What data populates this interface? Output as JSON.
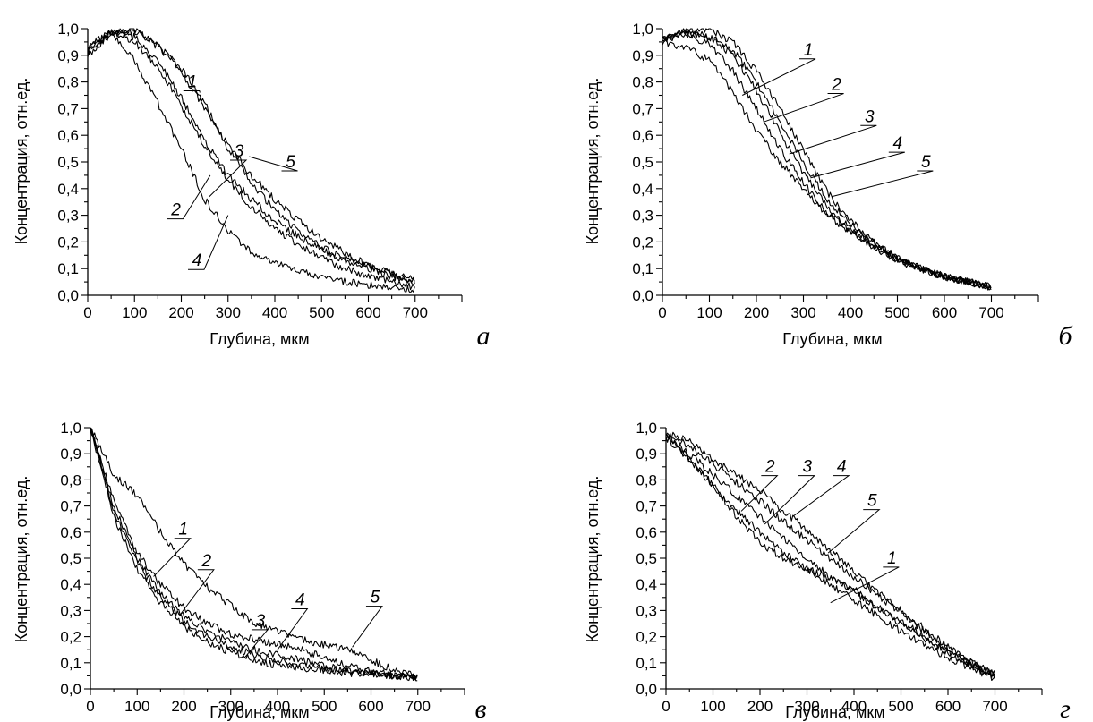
{
  "chart_data": [
    {
      "type": "line",
      "panel_letter": "а",
      "xlabel": "Глубина, мкм",
      "ylabel": "Концентрация, отн.ед.",
      "xlim": [
        0,
        800
      ],
      "ylim": [
        0,
        1.0
      ],
      "x_ticks": [
        "0",
        "100",
        "200",
        "300",
        "400",
        "500",
        "600",
        "700"
      ],
      "y_ticks": [
        "0,0",
        "0,1",
        "0,2",
        "0,3",
        "0,4",
        "0,5",
        "0,6",
        "0,7",
        "0,8",
        "0,9",
        "1,0"
      ],
      "grid": false,
      "series": [
        {
          "name": "1",
          "x": [
            0,
            50,
            100,
            150,
            200,
            250,
            300,
            350,
            400,
            450,
            500,
            550,
            600,
            650,
            700
          ],
          "y": [
            0.92,
            0.99,
            1.0,
            0.93,
            0.85,
            0.72,
            0.55,
            0.42,
            0.32,
            0.24,
            0.18,
            0.14,
            0.11,
            0.08,
            0.05
          ],
          "label_anchor": [
            240,
            0.76
          ]
        },
        {
          "name": "2",
          "x": [
            0,
            50,
            100,
            150,
            200,
            250,
            300,
            350,
            400,
            450,
            500,
            550,
            600,
            650,
            700
          ],
          "y": [
            0.93,
            0.99,
            0.95,
            0.86,
            0.71,
            0.56,
            0.43,
            0.33,
            0.25,
            0.19,
            0.14,
            0.1,
            0.07,
            0.05,
            0.03
          ],
          "label_anchor": [
            262,
            0.45
          ]
        },
        {
          "name": "3",
          "x": [
            0,
            50,
            100,
            150,
            200,
            250,
            300,
            350,
            400,
            450,
            500,
            550,
            600,
            650,
            700
          ],
          "y": [
            0.93,
            0.98,
            0.97,
            0.88,
            0.74,
            0.58,
            0.45,
            0.36,
            0.28,
            0.22,
            0.17,
            0.13,
            0.1,
            0.07,
            0.04
          ],
          "label_anchor": [
            260,
            0.37
          ]
        },
        {
          "name": "4",
          "x": [
            0,
            50,
            100,
            150,
            200,
            250,
            300,
            350,
            400,
            450,
            500,
            550,
            600,
            650,
            700
          ],
          "y": [
            0.9,
            0.98,
            0.88,
            0.72,
            0.55,
            0.36,
            0.24,
            0.16,
            0.12,
            0.09,
            0.07,
            0.05,
            0.04,
            0.03,
            0.02
          ],
          "label_anchor": [
            300,
            0.3
          ]
        },
        {
          "name": "5",
          "x": [
            0,
            50,
            100,
            150,
            200,
            250,
            300,
            350,
            400,
            450,
            500,
            550,
            600,
            650,
            700
          ],
          "y": [
            0.91,
            0.99,
            0.99,
            0.94,
            0.84,
            0.7,
            0.56,
            0.45,
            0.36,
            0.28,
            0.21,
            0.16,
            0.11,
            0.08,
            0.06
          ],
          "label_anchor": [
            345,
            0.52
          ]
        }
      ],
      "curve_labels": [
        {
          "text": "1",
          "at": [
            235,
            0.78
          ]
        },
        {
          "text": "3",
          "at": [
            335,
            0.52
          ]
        },
        {
          "text": "5",
          "at": [
            445,
            0.48
          ]
        },
        {
          "text": "2",
          "at": [
            200,
            0.3
          ]
        },
        {
          "text": "4",
          "at": [
            245,
            0.11
          ]
        }
      ]
    },
    {
      "type": "line",
      "panel_letter": "б",
      "xlabel": "Глубина, мкм",
      "ylabel": "Концентрация, отн.ед.",
      "xlim": [
        0,
        800
      ],
      "ylim": [
        0,
        1.0
      ],
      "x_ticks": [
        "0",
        "100",
        "200",
        "300",
        "400",
        "500",
        "600",
        "700"
      ],
      "y_ticks": [
        "0,0",
        "0,1",
        "0,2",
        "0,3",
        "0,4",
        "0,5",
        "0,6",
        "0,7",
        "0,8",
        "0,9",
        "1,0"
      ],
      "grid": false,
      "series": [
        {
          "name": "1",
          "x": [
            0,
            50,
            100,
            150,
            200,
            250,
            300,
            350,
            400,
            450,
            500,
            550,
            600,
            650,
            700
          ],
          "y": [
            0.95,
            0.93,
            0.88,
            0.76,
            0.62,
            0.5,
            0.4,
            0.3,
            0.24,
            0.18,
            0.13,
            0.1,
            0.07,
            0.05,
            0.03
          ],
          "label_anchor": [
            170,
            0.75
          ]
        },
        {
          "name": "2",
          "x": [
            0,
            50,
            100,
            150,
            200,
            250,
            300,
            350,
            400,
            450,
            500,
            550,
            600,
            650,
            700
          ],
          "y": [
            0.96,
            0.98,
            0.94,
            0.84,
            0.7,
            0.55,
            0.42,
            0.31,
            0.24,
            0.18,
            0.13,
            0.1,
            0.07,
            0.05,
            0.03
          ],
          "label_anchor": [
            215,
            0.65
          ]
        },
        {
          "name": "3",
          "x": [
            0,
            50,
            100,
            150,
            200,
            250,
            300,
            350,
            400,
            450,
            500,
            550,
            600,
            650,
            700
          ],
          "y": [
            0.96,
            0.98,
            0.97,
            0.9,
            0.77,
            0.61,
            0.46,
            0.33,
            0.25,
            0.19,
            0.14,
            0.1,
            0.07,
            0.05,
            0.03
          ],
          "label_anchor": [
            270,
            0.53
          ]
        },
        {
          "name": "4",
          "x": [
            0,
            50,
            100,
            150,
            200,
            250,
            300,
            350,
            400,
            450,
            500,
            550,
            600,
            650,
            700
          ],
          "y": [
            0.96,
            0.99,
            0.97,
            0.92,
            0.8,
            0.65,
            0.5,
            0.36,
            0.27,
            0.2,
            0.14,
            0.1,
            0.07,
            0.05,
            0.03
          ],
          "label_anchor": [
            315,
            0.44
          ]
        },
        {
          "name": "5",
          "x": [
            0,
            50,
            100,
            150,
            200,
            250,
            300,
            350,
            400,
            450,
            500,
            550,
            600,
            650,
            700
          ],
          "y": [
            0.96,
            0.99,
            1.0,
            0.95,
            0.84,
            0.7,
            0.54,
            0.39,
            0.28,
            0.2,
            0.14,
            0.1,
            0.07,
            0.05,
            0.03
          ],
          "label_anchor": [
            360,
            0.37
          ]
        }
      ],
      "curve_labels": [
        {
          "text": "1",
          "at": [
            322,
            0.9
          ]
        },
        {
          "text": "2",
          "at": [
            382,
            0.77
          ]
        },
        {
          "text": "3",
          "at": [
            452,
            0.65
          ]
        },
        {
          "text": "4",
          "at": [
            512,
            0.55
          ]
        },
        {
          "text": "5",
          "at": [
            572,
            0.48
          ]
        }
      ]
    },
    {
      "type": "line",
      "panel_letter": "в",
      "xlabel": "Глубина, мкм",
      "ylabel": "Концентрация, отн.ед.",
      "xlim": [
        0,
        800
      ],
      "ylim": [
        0,
        1.0
      ],
      "x_ticks": [
        "0",
        "100",
        "200",
        "300",
        "400",
        "500",
        "600",
        "700"
      ],
      "y_ticks": [
        "0,0",
        "0,1",
        "0,2",
        "0,3",
        "0,4",
        "0,5",
        "0,6",
        "0,7",
        "0,8",
        "0,9",
        "1,0"
      ],
      "grid": false,
      "series": [
        {
          "name": "1",
          "x": [
            0,
            50,
            100,
            150,
            200,
            250,
            300,
            350,
            400,
            450,
            500,
            550,
            600,
            650,
            700
          ],
          "y": [
            1.0,
            0.66,
            0.46,
            0.33,
            0.24,
            0.18,
            0.14,
            0.11,
            0.09,
            0.08,
            0.07,
            0.06,
            0.06,
            0.05,
            0.04
          ],
          "label_anchor": [
            135,
            0.43
          ]
        },
        {
          "name": "2",
          "x": [
            0,
            50,
            100,
            150,
            200,
            250,
            300,
            350,
            400,
            450,
            500,
            550,
            600,
            650,
            700
          ],
          "y": [
            1.0,
            0.68,
            0.48,
            0.35,
            0.26,
            0.2,
            0.16,
            0.13,
            0.11,
            0.09,
            0.08,
            0.07,
            0.06,
            0.05,
            0.04
          ],
          "label_anchor": [
            190,
            0.28
          ]
        },
        {
          "name": "3",
          "x": [
            0,
            50,
            100,
            150,
            200,
            250,
            300,
            350,
            400,
            450,
            500,
            550,
            600,
            650,
            700
          ],
          "y": [
            1.0,
            0.7,
            0.5,
            0.37,
            0.28,
            0.22,
            0.18,
            0.15,
            0.13,
            0.11,
            0.09,
            0.07,
            0.06,
            0.05,
            0.04
          ],
          "label_anchor": [
            330,
            0.12
          ]
        },
        {
          "name": "4",
          "x": [
            0,
            50,
            100,
            150,
            200,
            250,
            300,
            350,
            400,
            450,
            500,
            550,
            600,
            650,
            700
          ],
          "y": [
            1.0,
            0.72,
            0.52,
            0.4,
            0.31,
            0.25,
            0.21,
            0.19,
            0.17,
            0.15,
            0.12,
            0.09,
            0.07,
            0.05,
            0.04
          ],
          "label_anchor": [
            400,
            0.15
          ]
        },
        {
          "name": "5",
          "x": [
            0,
            50,
            100,
            150,
            200,
            250,
            300,
            350,
            400,
            450,
            500,
            550,
            600,
            650,
            700
          ],
          "y": [
            1.0,
            0.82,
            0.74,
            0.6,
            0.48,
            0.39,
            0.32,
            0.25,
            0.22,
            0.19,
            0.17,
            0.15,
            0.11,
            0.07,
            0.05
          ],
          "label_anchor": [
            560,
            0.16
          ]
        }
      ],
      "curve_labels": [
        {
          "text": "1",
          "at": [
            210,
            0.59
          ]
        },
        {
          "text": "2",
          "at": [
            260,
            0.47
          ]
        },
        {
          "text": "3",
          "at": [
            375,
            0.24
          ]
        },
        {
          "text": "4",
          "at": [
            460,
            0.32
          ]
        },
        {
          "text": "5",
          "at": [
            620,
            0.33
          ]
        }
      ]
    },
    {
      "type": "line",
      "panel_letter": "г",
      "xlabel": "Глубина, мкм",
      "ylabel": "Концентрация, отн.ед.",
      "xlim": [
        0,
        800
      ],
      "ylim": [
        0,
        1.0
      ],
      "x_ticks": [
        "0",
        "100",
        "200",
        "300",
        "400",
        "500",
        "600",
        "700"
      ],
      "y_ticks": [
        "0,0",
        "0,1",
        "0,2",
        "0,3",
        "0,4",
        "0,5",
        "0,6",
        "0,7",
        "0,8",
        "0,9",
        "1,0"
      ],
      "grid": false,
      "series": [
        {
          "name": "1",
          "x": [
            0,
            50,
            100,
            150,
            200,
            250,
            300,
            350,
            400,
            450,
            500,
            550,
            600,
            650,
            700
          ],
          "y": [
            0.96,
            0.88,
            0.78,
            0.68,
            0.6,
            0.52,
            0.46,
            0.4,
            0.34,
            0.28,
            0.22,
            0.17,
            0.12,
            0.08,
            0.04
          ],
          "label_anchor": [
            350,
            0.33
          ]
        },
        {
          "name": "2",
          "x": [
            0,
            50,
            100,
            150,
            200,
            250,
            300,
            350,
            400,
            450,
            500,
            550,
            600,
            650,
            700
          ],
          "y": [
            0.97,
            0.88,
            0.78,
            0.66,
            0.56,
            0.5,
            0.46,
            0.42,
            0.38,
            0.32,
            0.26,
            0.2,
            0.14,
            0.09,
            0.04
          ],
          "label_anchor": [
            160,
            0.68
          ]
        },
        {
          "name": "3",
          "x": [
            0,
            50,
            100,
            150,
            200,
            250,
            300,
            350,
            400,
            450,
            500,
            550,
            600,
            650,
            700
          ],
          "y": [
            0.97,
            0.9,
            0.82,
            0.74,
            0.66,
            0.58,
            0.5,
            0.43,
            0.37,
            0.31,
            0.25,
            0.19,
            0.14,
            0.09,
            0.05
          ],
          "label_anchor": [
            210,
            0.63
          ]
        },
        {
          "name": "4",
          "x": [
            0,
            50,
            100,
            150,
            200,
            250,
            300,
            350,
            400,
            450,
            500,
            550,
            600,
            650,
            700
          ],
          "y": [
            0.98,
            0.95,
            0.88,
            0.82,
            0.76,
            0.68,
            0.61,
            0.53,
            0.45,
            0.37,
            0.3,
            0.23,
            0.16,
            0.1,
            0.05
          ],
          "label_anchor": [
            270,
            0.66
          ]
        },
        {
          "name": "5",
          "x": [
            0,
            50,
            100,
            150,
            200,
            250,
            300,
            350,
            400,
            450,
            500,
            550,
            600,
            650,
            700
          ],
          "y": [
            0.98,
            0.93,
            0.86,
            0.79,
            0.72,
            0.64,
            0.57,
            0.5,
            0.43,
            0.36,
            0.29,
            0.22,
            0.16,
            0.1,
            0.06
          ],
          "label_anchor": [
            345,
            0.52
          ]
        }
      ],
      "curve_labels": [
        {
          "text": "2",
          "at": [
            233,
            0.83
          ]
        },
        {
          "text": "3",
          "at": [
            312,
            0.83
          ]
        },
        {
          "text": "4",
          "at": [
            385,
            0.83
          ]
        },
        {
          "text": "5",
          "at": [
            450,
            0.7
          ]
        },
        {
          "text": "1",
          "at": [
            492,
            0.48
          ]
        }
      ]
    }
  ]
}
